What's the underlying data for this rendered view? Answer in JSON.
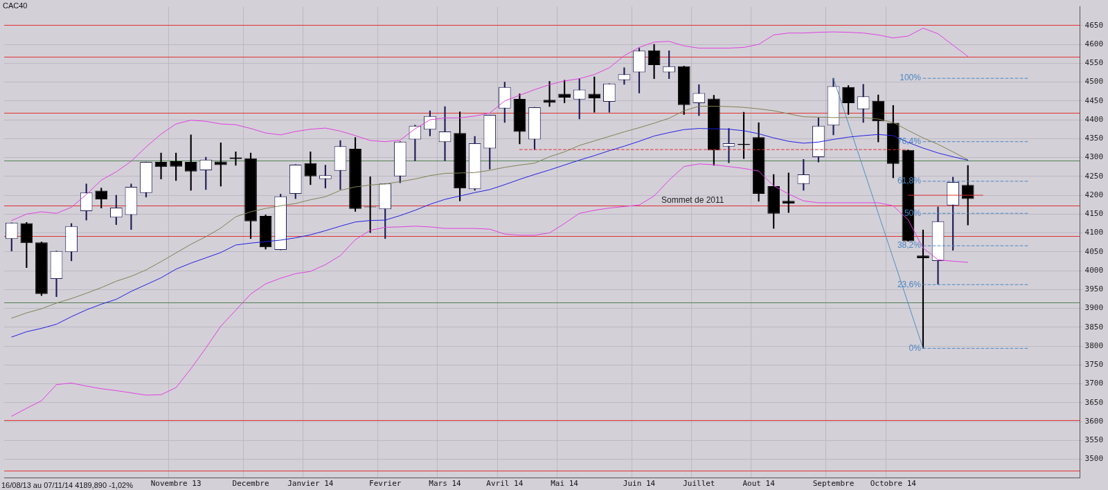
{
  "chart_data": {
    "type": "candlestick",
    "title": "CAC40",
    "categories": [
      null,
      null,
      null,
      null,
      null,
      null,
      null,
      null,
      null,
      null,
      null,
      "Novembre 13",
      null,
      null,
      null,
      null,
      "Decembre",
      null,
      null,
      null,
      "Janvier 14",
      null,
      null,
      null,
      null,
      "Fevrier",
      null,
      null,
      null,
      "Mars 14",
      null,
      null,
      null,
      "Avril 14",
      null,
      null,
      null,
      "Mai 14",
      null,
      null,
      null,
      null,
      "Juin 14",
      null,
      null,
      null,
      "Juillet",
      null,
      null,
      null,
      "Aout 14",
      null,
      null,
      null,
      null,
      "Septembre",
      null,
      null,
      null,
      "Octobre 14",
      null,
      null,
      null,
      null,
      null,
      null,
      null,
      null,
      null,
      null,
      null,
      null
    ],
    "ohlc": [
      [
        4084,
        4127,
        4052,
        4127
      ],
      [
        4126,
        4128,
        4008,
        4073
      ],
      [
        4075,
        4076,
        3934,
        3938
      ],
      [
        3978,
        4052,
        3931,
        4052
      ],
      [
        4049,
        4125,
        4026,
        4118
      ],
      [
        4158,
        4230,
        4134,
        4207
      ],
      [
        4212,
        4219,
        4166,
        4189
      ],
      [
        4141,
        4200,
        4122,
        4167
      ],
      [
        4148,
        4230,
        4109,
        4222
      ],
      [
        4206,
        4288,
        4195,
        4288
      ],
      [
        4288,
        4312,
        4243,
        4275
      ],
      [
        4290,
        4312,
        4239,
        4276
      ],
      [
        4288,
        4360,
        4213,
        4263
      ],
      [
        4266,
        4301,
        4215,
        4294
      ],
      [
        4289,
        4339,
        4224,
        4280
      ],
      [
        4300,
        4315,
        4279,
        4296
      ],
      [
        4298,
        4312,
        4085,
        4131
      ],
      [
        4145,
        4148,
        4057,
        4062
      ],
      [
        4055,
        4203,
        4055,
        4197
      ],
      [
        4204,
        4281,
        4191,
        4281
      ],
      [
        4285,
        4315,
        4228,
        4250
      ],
      [
        4243,
        4280,
        4219,
        4253
      ],
      [
        4265,
        4345,
        4215,
        4330
      ],
      [
        4323,
        4353,
        4157,
        4164
      ],
      [
        4170,
        4249,
        4101,
        4168
      ],
      [
        4163,
        4231,
        4085,
        4231
      ],
      [
        4250,
        4342,
        4233,
        4342
      ],
      [
        4348,
        4386,
        4291,
        4384
      ],
      [
        4374,
        4424,
        4357,
        4410
      ],
      [
        4341,
        4435,
        4291,
        4369
      ],
      [
        4365,
        4421,
        4185,
        4218
      ],
      [
        4216,
        4356,
        4213,
        4338
      ],
      [
        4324,
        4413,
        4269,
        4413
      ],
      [
        4430,
        4500,
        4393,
        4487
      ],
      [
        4455,
        4469,
        4336,
        4368
      ],
      [
        4348,
        4433,
        4321,
        4433
      ],
      [
        4453,
        4502,
        4435,
        4445
      ],
      [
        4469,
        4505,
        4445,
        4459
      ],
      [
        4454,
        4509,
        4402,
        4480
      ],
      [
        4469,
        4514,
        4420,
        4457
      ],
      [
        4448,
        4496,
        4420,
        4496
      ],
      [
        4505,
        4538,
        4494,
        4521
      ],
      [
        4526,
        4590,
        4471,
        4583
      ],
      [
        4584,
        4600,
        4509,
        4545
      ],
      [
        4526,
        4583,
        4509,
        4542
      ],
      [
        4542,
        4542,
        4414,
        4439
      ],
      [
        4444,
        4493,
        4411,
        4471
      ],
      [
        4456,
        4465,
        4279,
        4319
      ],
      [
        4329,
        4377,
        4286,
        4338
      ],
      [
        4336,
        4420,
        4297,
        4333
      ],
      [
        4354,
        4392,
        4184,
        4204
      ],
      [
        4224,
        4255,
        4112,
        4151
      ],
      [
        4185,
        4259,
        4154,
        4178
      ],
      [
        4230,
        4295,
        4213,
        4255
      ],
      [
        4301,
        4405,
        4288,
        4384
      ],
      [
        4385,
        4510,
        4360,
        4489
      ],
      [
        4487,
        4491,
        4414,
        4444
      ],
      [
        4428,
        4494,
        4393,
        4462
      ],
      [
        4450,
        4466,
        4341,
        4396
      ],
      [
        4392,
        4438,
        4246,
        4283
      ],
      [
        4320,
        4320,
        4078,
        4078
      ],
      [
        4040,
        4108,
        3794,
        4033
      ],
      [
        4026,
        4169,
        3964,
        4131
      ],
      [
        4173,
        4248,
        4054,
        4235
      ],
      [
        4227,
        4279,
        4121,
        4190
      ],
      null,
      null,
      null,
      null,
      null,
      null,
      null
    ],
    "series": [
      {
        "type": "line",
        "color": "#e040e0",
        "values": [
          4133,
          4150,
          4156,
          4152,
          4168,
          4202,
          4240,
          4262,
          4290,
          4328,
          4362,
          4389,
          4399,
          4396,
          4389,
          4387,
          4377,
          4365,
          4360,
          4369,
          4375,
          4378,
          4370,
          4358,
          4345,
          4342,
          4346,
          4376,
          4400,
          4405,
          4405,
          4410,
          4418,
          4450,
          4465,
          4480,
          4493,
          4503,
          4509,
          4520,
          4538,
          4570,
          4592,
          4606,
          4608,
          4596,
          4590,
          4590,
          4590,
          4592,
          4600,
          4625,
          4630,
          4630,
          4632,
          4633,
          4632,
          4630,
          4625,
          4617,
          4622,
          4643,
          4628,
          4598,
          4568,
          null,
          null,
          null,
          null,
          null,
          null,
          null
        ]
      },
      {
        "type": "line",
        "color": "#e040e0",
        "values": [
          3614,
          3635,
          3655,
          3698,
          3702,
          3694,
          3687,
          3682,
          3676,
          3670,
          3671,
          3690,
          3740,
          3795,
          3853,
          3895,
          3938,
          3965,
          3980,
          3992,
          3998,
          4016,
          4040,
          4082,
          4107,
          4115,
          4116,
          4118,
          4116,
          4112,
          4112,
          4112,
          4110,
          4097,
          4094,
          4094,
          4100,
          4125,
          4152,
          4160,
          4166,
          4170,
          4174,
          4198,
          4240,
          4276,
          4283,
          4281,
          4276,
          4271,
          4264,
          4225,
          4203,
          4185,
          4180,
          4180,
          4180,
          4180,
          4180,
          4172,
          4135,
          4060,
          4029,
          4025,
          4022,
          null,
          null,
          null,
          null,
          null,
          null,
          null
        ]
      },
      {
        "type": "line",
        "color": "#2020e0",
        "values": [
          3824,
          3838,
          3847,
          3858,
          3878,
          3896,
          3911,
          3924,
          3945,
          3963,
          3981,
          4004,
          4020,
          4034,
          4048,
          4068,
          4073,
          4077,
          4081,
          4087,
          4095,
          4106,
          4118,
          4129,
          4133,
          4134,
          4146,
          4160,
          4176,
          4189,
          4198,
          4207,
          4215,
          4228,
          4242,
          4255,
          4267,
          4280,
          4293,
          4305,
          4318,
          4330,
          4343,
          4357,
          4366,
          4374,
          4377,
          4376,
          4375,
          4371,
          4363,
          4352,
          4343,
          4338,
          4341,
          4348,
          4354,
          4358,
          4361,
          4358,
          4340,
          4325,
          4312,
          4302,
          4293,
          null,
          null,
          null,
          null,
          null,
          null,
          null
        ]
      },
      {
        "type": "line",
        "color": "#808050",
        "values": [
          3874,
          3888,
          3899,
          3914,
          3926,
          3940,
          3955,
          3972,
          3985,
          4002,
          4024,
          4047,
          4070,
          4090,
          4113,
          4143,
          4156,
          4165,
          4172,
          4178,
          4188,
          4196,
          4213,
          4222,
          4227,
          4230,
          4236,
          4243,
          4252,
          4258,
          4259,
          4260,
          4266,
          4274,
          4280,
          4285,
          4302,
          4315,
          4332,
          4344,
          4356,
          4368,
          4379,
          4391,
          4404,
          4424,
          4436,
          4436,
          4435,
          4433,
          4429,
          4424,
          4416,
          4408,
          4407,
          4406,
          4406,
          4406,
          4402,
          4393,
          4372,
          4352,
          4335,
          4315,
          4294,
          null,
          null,
          null,
          null,
          null,
          null,
          null
        ]
      },
      {
        "type": "line",
        "color": "#4a90c0",
        "values": [
          null,
          null,
          null,
          null,
          null,
          null,
          null,
          null,
          null,
          null,
          null,
          null,
          null,
          null,
          null,
          null,
          null,
          null,
          null,
          null,
          null,
          null,
          null,
          null,
          null,
          null,
          null,
          null,
          null,
          null,
          null,
          null,
          null,
          null,
          null,
          null,
          null,
          null,
          null,
          null,
          null,
          null,
          null,
          null,
          null,
          null,
          null,
          null,
          null,
          null,
          null,
          null,
          null,
          null,
          null,
          4510,
          null,
          null,
          null,
          null,
          null,
          3794,
          null,
          null,
          null,
          null,
          null,
          null,
          null,
          null,
          null,
          null
        ]
      },
      {
        "type": "line",
        "color": "#e03030",
        "line_style": "dashed",
        "values": [
          null,
          null,
          null,
          null,
          null,
          null,
          null,
          null,
          null,
          null,
          null,
          null,
          null,
          null,
          null,
          null,
          null,
          null,
          null,
          null,
          null,
          null,
          null,
          null,
          null,
          null,
          null,
          null,
          null,
          null,
          null,
          null,
          null,
          null,
          4321,
          4321,
          4321,
          4321,
          4321,
          4321,
          4321,
          4321,
          4321,
          4321,
          4321,
          4321,
          4321,
          4321,
          4321,
          4321,
          4321,
          4321,
          4321,
          4321,
          4321,
          4321,
          4321,
          4321,
          4321,
          4321,
          4321,
          null,
          null,
          null,
          null,
          null,
          null,
          null,
          null,
          null,
          null,
          null
        ]
      },
      {
        "type": "line",
        "color": "#e03030",
        "values": [
          null,
          null,
          null,
          null,
          null,
          null,
          null,
          null,
          null,
          null,
          null,
          null,
          null,
          null,
          null,
          null,
          null,
          null,
          null,
          null,
          null,
          null,
          null,
          null,
          null,
          null,
          null,
          null,
          null,
          null,
          null,
          null,
          null,
          null,
          null,
          null,
          null,
          null,
          null,
          null,
          null,
          null,
          null,
          null,
          null,
          null,
          null,
          null,
          null,
          null,
          null,
          null,
          null,
          null,
          null,
          null,
          null,
          null,
          null,
          null,
          4200,
          4200,
          4200,
          4200,
          4200,
          4200,
          null,
          null,
          null,
          null,
          null,
          null
        ]
      },
      {
        "type": "line",
        "name": "100%",
        "color": "#4a86c0",
        "line_style": "dashed",
        "values": [
          null,
          null,
          null,
          null,
          null,
          null,
          null,
          null,
          null,
          null,
          null,
          null,
          null,
          null,
          null,
          null,
          null,
          null,
          null,
          null,
          null,
          null,
          null,
          null,
          null,
          null,
          null,
          null,
          null,
          null,
          null,
          null,
          null,
          null,
          null,
          null,
          null,
          null,
          null,
          null,
          null,
          null,
          null,
          null,
          null,
          null,
          null,
          null,
          null,
          null,
          null,
          null,
          null,
          null,
          null,
          null,
          null,
          null,
          null,
          null,
          null,
          4510,
          4510,
          4510,
          4510,
          4510,
          4510,
          4510,
          4510,
          null,
          null,
          null
        ]
      },
      {
        "type": "line",
        "name": "76,4%",
        "color": "#4a86c0",
        "line_style": "dashed",
        "values": [
          null,
          null,
          null,
          null,
          null,
          null,
          null,
          null,
          null,
          null,
          null,
          null,
          null,
          null,
          null,
          null,
          null,
          null,
          null,
          null,
          null,
          null,
          null,
          null,
          null,
          null,
          null,
          null,
          null,
          null,
          null,
          null,
          null,
          null,
          null,
          null,
          null,
          null,
          null,
          null,
          null,
          null,
          null,
          null,
          null,
          null,
          null,
          null,
          null,
          null,
          null,
          null,
          null,
          null,
          null,
          null,
          null,
          null,
          null,
          null,
          null,
          4342,
          4342,
          4342,
          4342,
          4342,
          4342,
          4342,
          4342,
          null,
          null,
          null
        ]
      },
      {
        "type": "line",
        "name": "61,8%",
        "color": "#4a86c0",
        "line_style": "dashed",
        "values": [
          null,
          null,
          null,
          null,
          null,
          null,
          null,
          null,
          null,
          null,
          null,
          null,
          null,
          null,
          null,
          null,
          null,
          null,
          null,
          null,
          null,
          null,
          null,
          null,
          null,
          null,
          null,
          null,
          null,
          null,
          null,
          null,
          null,
          null,
          null,
          null,
          null,
          null,
          null,
          null,
          null,
          null,
          null,
          null,
          null,
          null,
          null,
          null,
          null,
          null,
          null,
          null,
          null,
          null,
          null,
          null,
          null,
          null,
          null,
          null,
          null,
          4237,
          4237,
          4237,
          4237,
          4237,
          4237,
          4237,
          4237,
          null,
          null,
          null
        ]
      },
      {
        "type": "line",
        "name": "50%",
        "color": "#4a86c0",
        "line_style": "dashed",
        "values": [
          null,
          null,
          null,
          null,
          null,
          null,
          null,
          null,
          null,
          null,
          null,
          null,
          null,
          null,
          null,
          null,
          null,
          null,
          null,
          null,
          null,
          null,
          null,
          null,
          null,
          null,
          null,
          null,
          null,
          null,
          null,
          null,
          null,
          null,
          null,
          null,
          null,
          null,
          null,
          null,
          null,
          null,
          null,
          null,
          null,
          null,
          null,
          null,
          null,
          null,
          null,
          null,
          null,
          null,
          null,
          null,
          null,
          null,
          null,
          null,
          null,
          4152,
          4152,
          4152,
          4152,
          4152,
          4152,
          4152,
          4152,
          null,
          null,
          null
        ]
      },
      {
        "type": "line",
        "name": "38,2%",
        "color": "#4a86c0",
        "line_style": "dashed",
        "values": [
          null,
          null,
          null,
          null,
          null,
          null,
          null,
          null,
          null,
          null,
          null,
          null,
          null,
          null,
          null,
          null,
          null,
          null,
          null,
          null,
          null,
          null,
          null,
          null,
          null,
          null,
          null,
          null,
          null,
          null,
          null,
          null,
          null,
          null,
          null,
          null,
          null,
          null,
          null,
          null,
          null,
          null,
          null,
          null,
          null,
          null,
          null,
          null,
          null,
          null,
          null,
          null,
          null,
          null,
          null,
          null,
          null,
          null,
          null,
          null,
          null,
          4066,
          4066,
          4066,
          4066,
          4066,
          4066,
          4066,
          4066,
          null,
          null,
          null
        ]
      },
      {
        "type": "line",
        "name": "23,6%",
        "color": "#4a86c0",
        "line_style": "dashed",
        "values": [
          null,
          null,
          null,
          null,
          null,
          null,
          null,
          null,
          null,
          null,
          null,
          null,
          null,
          null,
          null,
          null,
          null,
          null,
          null,
          null,
          null,
          null,
          null,
          null,
          null,
          null,
          null,
          null,
          null,
          null,
          null,
          null,
          null,
          null,
          null,
          null,
          null,
          null,
          null,
          null,
          null,
          null,
          null,
          null,
          null,
          null,
          null,
          null,
          null,
          null,
          null,
          null,
          null,
          null,
          null,
          null,
          null,
          null,
          null,
          null,
          null,
          3963,
          3963,
          3963,
          3963,
          3963,
          3963,
          3963,
          3963,
          null,
          null,
          null
        ]
      },
      {
        "type": "line",
        "name": "0%",
        "color": "#4a86c0",
        "line_style": "dashed",
        "values": [
          null,
          null,
          null,
          null,
          null,
          null,
          null,
          null,
          null,
          null,
          null,
          null,
          null,
          null,
          null,
          null,
          null,
          null,
          null,
          null,
          null,
          null,
          null,
          null,
          null,
          null,
          null,
          null,
          null,
          null,
          null,
          null,
          null,
          null,
          null,
          null,
          null,
          null,
          null,
          null,
          null,
          null,
          null,
          null,
          null,
          null,
          null,
          null,
          null,
          null,
          null,
          null,
          null,
          null,
          null,
          null,
          null,
          null,
          null,
          null,
          null,
          3794,
          3794,
          3794,
          3794,
          3794,
          3794,
          3794,
          3794,
          null,
          null,
          null
        ]
      }
    ],
    "ylim": [
      3450,
      4700
    ],
    "yticks": [
      3500,
      3550,
      3600,
      3650,
      3700,
      3750,
      3800,
      3850,
      3900,
      3950,
      4000,
      4050,
      4100,
      4150,
      4200,
      4250,
      4300,
      4350,
      4400,
      4450,
      4500,
      4550,
      4600,
      4650
    ],
    "ref_lines": [
      {
        "axis": "y",
        "value": 4652,
        "color": "#e03030"
      },
      {
        "axis": "y",
        "value": 4567,
        "color": "#e03030"
      },
      {
        "axis": "y",
        "value": 4419,
        "color": "#e03030"
      },
      {
        "axis": "y",
        "value": 4291,
        "color": "#508050"
      },
      {
        "axis": "y",
        "value": 4172,
        "color": "#e03030",
        "label": "Sommet de 2011"
      },
      {
        "axis": "y",
        "value": 4092,
        "color": "#e03030"
      },
      {
        "axis": "y",
        "value": 3916,
        "color": "#508050"
      },
      {
        "axis": "y",
        "value": 3603,
        "color": "#e03030"
      },
      {
        "axis": "y",
        "value": 3469,
        "color": "#e03030"
      }
    ],
    "annotations": [
      "16/08/13 au 07/11/14 4189,890 -1,02%"
    ],
    "grid": true,
    "legend": false,
    "marker": "none"
  }
}
